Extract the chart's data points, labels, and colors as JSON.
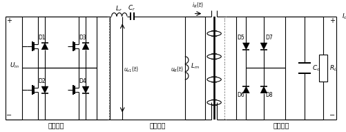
{
  "background": "#ffffff",
  "line_color": "#000000",
  "line_width": 0.8,
  "fig_width": 5.02,
  "fig_height": 1.91,
  "dpi": 100,
  "labels": {
    "switch_network": "开关网络",
    "resonance_network": "谐振网络",
    "filter_network": "滤波网络"
  }
}
